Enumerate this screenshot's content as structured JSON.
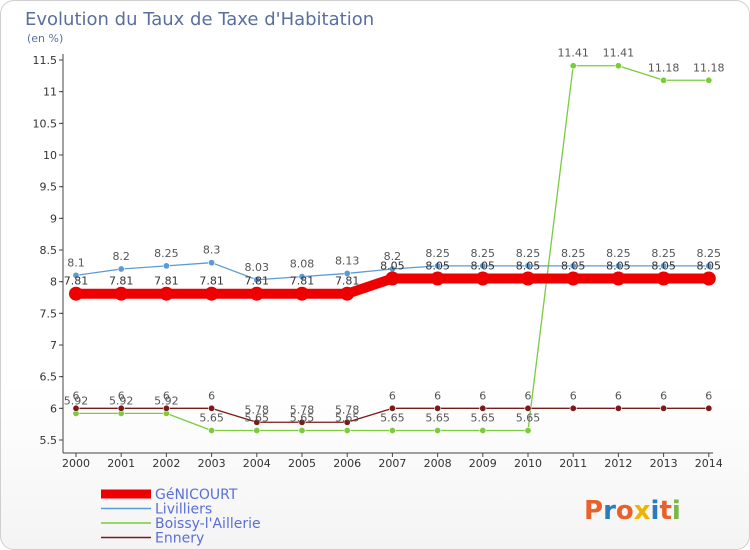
{
  "chart_data": {
    "type": "line",
    "title": "Evolution du Taux de Taxe d'Habitation",
    "subtitle": "(en %)",
    "x": [
      "2000",
      "2001",
      "2002",
      "2003",
      "2004",
      "2005",
      "2006",
      "2007",
      "2008",
      "2009",
      "2010",
      "2011",
      "2012",
      "2013",
      "2014"
    ],
    "y_ticks": [
      "5.5",
      "6",
      "6.5",
      "7",
      "7.5",
      "8",
      "8.5",
      "9",
      "9.5",
      "10",
      "10.5",
      "11",
      "11.5"
    ],
    "ylim": [
      5.5,
      11.5
    ],
    "series": [
      {
        "name": "GéNICOURT",
        "color": "#ee0000",
        "values": [
          7.81,
          7.81,
          7.81,
          7.81,
          7.81,
          7.81,
          7.81,
          8.05,
          8.05,
          8.05,
          8.05,
          8.05,
          8.05,
          8.05,
          8.05
        ],
        "labels": [
          "7.81",
          "7.81",
          "7.81",
          "7.81",
          "7.81",
          "7.81",
          "7.81",
          "8.05",
          "8.05",
          "8.05",
          "8.05",
          "8.05",
          "8.05",
          "8.05",
          "8.05"
        ]
      },
      {
        "name": "Livilliers",
        "color": "#5b9bd5",
        "values": [
          8.1,
          8.2,
          8.25,
          8.3,
          8.03,
          8.08,
          8.13,
          8.2,
          8.25,
          8.25,
          8.25,
          8.25,
          8.25,
          8.25,
          8.25
        ],
        "labels": [
          "8.1",
          "8.2",
          "8.25",
          "8.3",
          "8.03",
          "8.08",
          "8.13",
          "8.2",
          "8.25",
          "8.25",
          "8.25",
          "8.25",
          "8.25",
          "8.25",
          "8.25"
        ]
      },
      {
        "name": "Boissy-l'Aillerie",
        "color": "#7acc3c",
        "values": [
          5.92,
          5.92,
          5.92,
          5.65,
          5.65,
          5.65,
          5.65,
          5.65,
          5.65,
          5.65,
          5.65,
          11.41,
          11.41,
          11.18,
          11.18
        ],
        "labels": [
          "5.92",
          "5.92",
          "5.92",
          "5.65",
          "5.65",
          "5.65",
          "5.65",
          "5.65",
          "5.65",
          "5.65",
          "5.65",
          "11.41",
          "11.41",
          "11.18",
          "11.18"
        ]
      },
      {
        "name": "Ennery",
        "color": "#7a1a1a",
        "values": [
          6,
          6,
          6,
          6,
          5.78,
          5.78,
          5.78,
          6,
          6,
          6,
          6,
          6,
          6,
          6,
          6
        ],
        "labels": [
          "6",
          "6",
          "6",
          "6",
          "5.78",
          "5.78",
          "5.78",
          "6",
          "6",
          "6",
          "6",
          "6",
          "6",
          "6",
          "6"
        ]
      }
    ],
    "legend": "bottom-left",
    "grid": false
  },
  "logo": {
    "text": "Proxiti",
    "colors": [
      "#e8612c",
      "#2b7bc0",
      "#e8612c",
      "#f0b400",
      "#2b7bc0",
      "#e8612c",
      "#7ab648"
    ]
  }
}
